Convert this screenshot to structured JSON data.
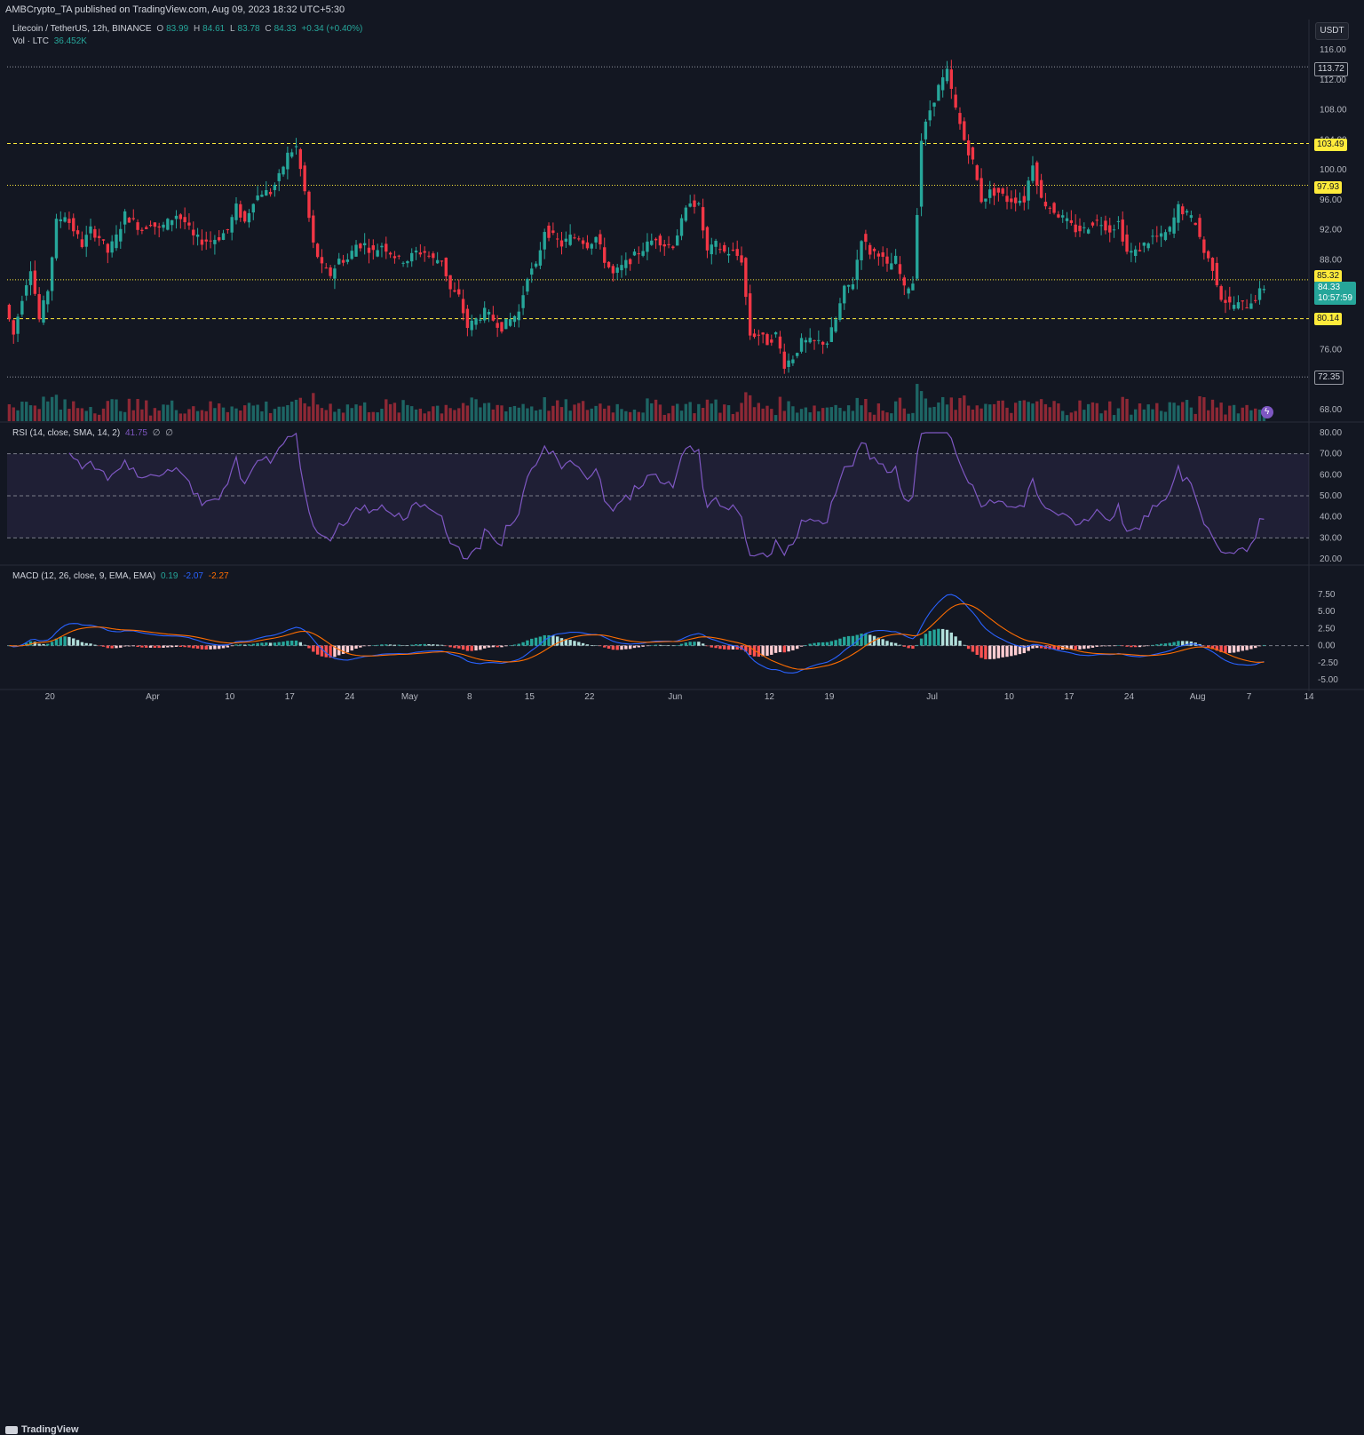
{
  "header": {
    "published": "AMBCrypto_TA published on TradingView.com, Aug 09, 2023 18:32 UTC+5:30"
  },
  "legend": {
    "symbol": "Litecoin / TetherUS, 12h, BINANCE",
    "o_label": "O",
    "o": "83.99",
    "h_label": "H",
    "h": "84.61",
    "l_label": "L",
    "l": "83.78",
    "c_label": "C",
    "c": "84.33",
    "change": "+0.34 (+0.40%)",
    "vol_label": "Vol · LTC",
    "vol_value": "36.452K",
    "rsi_label": "RSI (14, close, SMA, 14, 2)",
    "rsi_value": "41.75",
    "rsi_na1": "∅",
    "rsi_na2": "∅",
    "macd_label": "MACD (12, 26, close, 9, EMA, EMA)",
    "macd_hist": "0.19",
    "macd_line": "-2.07",
    "macd_signal": "-2.27"
  },
  "currency_button": "USDT",
  "footer": {
    "logo": "TradingView"
  },
  "colors": {
    "up": "#26a69a",
    "down": "#f23645",
    "rsi": "#7e57c2",
    "macd": "#2962ff",
    "signal": "#ff6d00",
    "level_yellow": "#ffeb3b"
  },
  "price_tags": {
    "level_high": "113.72",
    "level_r1": "103.49",
    "level_r2": "97.93",
    "level_r3": "85.32",
    "current": "84.33",
    "countdown": "10:57:59",
    "level_s1": "80.14",
    "level_low": "72.35"
  },
  "chart_data": [
    {
      "type": "candlestick",
      "title": "Litecoin / TetherUS, 12h, BINANCE",
      "interval": "12h",
      "x_range": [
        "2023-03-15",
        "2023-08-14"
      ],
      "x_ticks": [
        {
          "date": "2023-03-20",
          "label": "20"
        },
        {
          "date": "2023-04-01",
          "label": "Apr"
        },
        {
          "date": "2023-04-10",
          "label": "10"
        },
        {
          "date": "2023-04-17",
          "label": "17"
        },
        {
          "date": "2023-04-24",
          "label": "24"
        },
        {
          "date": "2023-05-01",
          "label": "May"
        },
        {
          "date": "2023-05-08",
          "label": "8"
        },
        {
          "date": "2023-05-15",
          "label": "15"
        },
        {
          "date": "2023-05-22",
          "label": "22"
        },
        {
          "date": "2023-06-01",
          "label": "Jun"
        },
        {
          "date": "2023-06-12",
          "label": "12"
        },
        {
          "date": "2023-06-19",
          "label": "19"
        },
        {
          "date": "2023-07-01",
          "label": "Jul"
        },
        {
          "date": "2023-07-10",
          "label": "10"
        },
        {
          "date": "2023-07-17",
          "label": "17"
        },
        {
          "date": "2023-07-24",
          "label": "24"
        },
        {
          "date": "2023-08-01",
          "label": "Aug"
        },
        {
          "date": "2023-08-07",
          "label": "7"
        },
        {
          "date": "2023-08-14",
          "label": "14"
        }
      ],
      "y_ticks": [
        "116.00",
        "112.00",
        "108.00",
        "104.00",
        "100.00",
        "96.00",
        "92.00",
        "88.00",
        "84.00",
        "80.00",
        "76.00",
        "72.00",
        "68.00"
      ],
      "y_range": [
        66,
        117
      ],
      "price_path": [
        [
          "2023-03-15",
          82
        ],
        [
          "2023-03-16",
          78
        ],
        [
          "2023-03-17",
          83
        ],
        [
          "2023-03-18",
          87
        ],
        [
          "2023-03-19",
          80
        ],
        [
          "2023-03-20",
          84
        ],
        [
          "2023-03-21",
          93
        ],
        [
          "2023-03-22",
          94
        ],
        [
          "2023-03-23",
          92
        ],
        [
          "2023-03-24",
          90
        ],
        [
          "2023-03-25",
          92
        ],
        [
          "2023-03-26",
          91
        ],
        [
          "2023-03-27",
          89
        ],
        [
          "2023-03-28",
          91
        ],
        [
          "2023-03-29",
          94
        ],
        [
          "2023-03-30",
          93
        ],
        [
          "2023-03-31",
          92
        ],
        [
          "2023-04-01",
          93
        ],
        [
          "2023-04-02",
          92
        ],
        [
          "2023-04-03",
          93
        ],
        [
          "2023-04-04",
          94
        ],
        [
          "2023-04-05",
          93
        ],
        [
          "2023-04-06",
          91
        ],
        [
          "2023-04-07",
          90.5
        ],
        [
          "2023-04-08",
          90.6
        ],
        [
          "2023-04-09",
          91
        ],
        [
          "2023-04-10",
          92
        ],
        [
          "2023-04-11",
          95
        ],
        [
          "2023-04-12",
          93
        ],
        [
          "2023-04-13",
          96
        ],
        [
          "2023-04-14",
          97
        ],
        [
          "2023-04-15",
          97
        ],
        [
          "2023-04-16",
          99
        ],
        [
          "2023-04-17",
          102
        ],
        [
          "2023-04-18",
          103
        ],
        [
          "2023-04-19",
          97
        ],
        [
          "2023-04-20",
          90
        ],
        [
          "2023-04-21",
          87
        ],
        [
          "2023-04-22",
          86
        ],
        [
          "2023-04-23",
          88
        ],
        [
          "2023-04-24",
          88
        ],
        [
          "2023-04-25",
          90
        ],
        [
          "2023-04-26",
          90
        ],
        [
          "2023-04-27",
          89
        ],
        [
          "2023-04-28",
          90
        ],
        [
          "2023-04-29",
          89
        ],
        [
          "2023-04-30",
          88
        ],
        [
          "2023-05-01",
          88
        ],
        [
          "2023-05-02",
          89
        ],
        [
          "2023-05-03",
          89
        ],
        [
          "2023-05-04",
          88
        ],
        [
          "2023-05-05",
          88
        ],
        [
          "2023-05-06",
          84
        ],
        [
          "2023-05-07",
          83
        ],
        [
          "2023-05-08",
          79
        ],
        [
          "2023-05-09",
          80
        ],
        [
          "2023-05-10",
          81
        ],
        [
          "2023-05-11",
          80
        ],
        [
          "2023-05-12",
          79
        ],
        [
          "2023-05-13",
          80
        ],
        [
          "2023-05-14",
          81
        ],
        [
          "2023-05-15",
          86
        ],
        [
          "2023-05-16",
          87
        ],
        [
          "2023-05-17",
          92
        ],
        [
          "2023-05-18",
          91
        ],
        [
          "2023-05-19",
          90
        ],
        [
          "2023-05-20",
          91
        ],
        [
          "2023-05-21",
          91
        ],
        [
          "2023-05-22",
          90
        ],
        [
          "2023-05-23",
          91
        ],
        [
          "2023-05-24",
          88
        ],
        [
          "2023-05-25",
          86
        ],
        [
          "2023-05-26",
          87
        ],
        [
          "2023-05-27",
          88
        ],
        [
          "2023-05-28",
          89
        ],
        [
          "2023-05-29",
          90
        ],
        [
          "2023-05-30",
          91
        ],
        [
          "2023-05-31",
          90
        ],
        [
          "2023-06-01",
          90
        ],
        [
          "2023-06-02",
          93
        ],
        [
          "2023-06-03",
          96
        ],
        [
          "2023-06-04",
          95
        ],
        [
          "2023-06-05",
          89
        ],
        [
          "2023-06-06",
          90
        ],
        [
          "2023-06-07",
          89
        ],
        [
          "2023-06-08",
          89
        ],
        [
          "2023-06-09",
          88
        ],
        [
          "2023-06-10",
          78
        ],
        [
          "2023-06-11",
          78
        ],
        [
          "2023-06-12",
          77
        ],
        [
          "2023-06-13",
          78
        ],
        [
          "2023-06-14",
          74
        ],
        [
          "2023-06-15",
          75
        ],
        [
          "2023-06-16",
          77
        ],
        [
          "2023-06-17",
          77
        ],
        [
          "2023-06-18",
          77
        ],
        [
          "2023-06-19",
          77
        ],
        [
          "2023-06-20",
          80
        ],
        [
          "2023-06-21",
          84
        ],
        [
          "2023-06-22",
          85
        ],
        [
          "2023-06-23",
          91
        ],
        [
          "2023-06-24",
          89
        ],
        [
          "2023-06-25",
          89
        ],
        [
          "2023-06-26",
          87
        ],
        [
          "2023-06-27",
          88
        ],
        [
          "2023-06-28",
          84
        ],
        [
          "2023-06-29",
          85
        ],
        [
          "2023-06-30",
          104
        ],
        [
          "2023-07-01",
          108
        ],
        [
          "2023-07-02",
          111
        ],
        [
          "2023-07-03",
          113
        ],
        [
          "2023-07-04",
          108
        ],
        [
          "2023-07-05",
          104
        ],
        [
          "2023-07-06",
          101
        ],
        [
          "2023-07-07",
          96
        ],
        [
          "2023-07-08",
          97
        ],
        [
          "2023-07-09",
          97
        ],
        [
          "2023-07-10",
          96
        ],
        [
          "2023-07-11",
          96
        ],
        [
          "2023-07-12",
          96
        ],
        [
          "2023-07-13",
          101
        ],
        [
          "2023-07-14",
          96
        ],
        [
          "2023-07-15",
          95
        ],
        [
          "2023-07-16",
          94
        ],
        [
          "2023-07-17",
          93
        ],
        [
          "2023-07-18",
          92
        ],
        [
          "2023-07-19",
          92
        ],
        [
          "2023-07-20",
          93
        ],
        [
          "2023-07-21",
          93
        ],
        [
          "2023-07-22",
          92
        ],
        [
          "2023-07-23",
          93
        ],
        [
          "2023-07-24",
          89
        ],
        [
          "2023-07-25",
          89
        ],
        [
          "2023-07-26",
          90
        ],
        [
          "2023-07-27",
          91
        ],
        [
          "2023-07-28",
          91
        ],
        [
          "2023-07-29",
          92
        ],
        [
          "2023-07-30",
          95
        ],
        [
          "2023-07-31",
          94
        ],
        [
          "2023-08-01",
          93
        ],
        [
          "2023-08-02",
          89
        ],
        [
          "2023-08-03",
          87
        ],
        [
          "2023-08-04",
          83
        ],
        [
          "2023-08-05",
          82
        ],
        [
          "2023-08-06",
          82
        ],
        [
          "2023-08-07",
          82
        ],
        [
          "2023-08-08",
          83
        ],
        [
          "2023-08-09",
          84.33
        ]
      ],
      "horizontal_levels": [
        {
          "price": 113.72,
          "style": "dotted",
          "color": "#9598a1"
        },
        {
          "price": 103.49,
          "style": "dashed",
          "color": "#ffeb3b"
        },
        {
          "price": 97.93,
          "style": "dotted",
          "color": "#ffeb3b"
        },
        {
          "price": 85.32,
          "style": "dotted",
          "color": "#ffeb3b"
        },
        {
          "price": 80.14,
          "style": "dashed",
          "color": "#ffeb3b"
        },
        {
          "price": 72.35,
          "style": "dotted",
          "color": "#9598a1"
        }
      ],
      "last": {
        "open": 83.99,
        "high": 84.61,
        "low": 83.78,
        "close": 84.33
      }
    },
    {
      "type": "line",
      "title": "RSI (14, close, SMA, 14, 2)",
      "y_ticks": [
        "80.00",
        "70.00",
        "60.00",
        "50.00",
        "40.00",
        "30.00",
        "20.00"
      ],
      "y_range": [
        18,
        82
      ],
      "bands": [
        30,
        70
      ],
      "mid": 50,
      "last_value": 41.75
    },
    {
      "type": "bar+line",
      "title": "MACD (12, 26, close, 9, EMA, EMA)",
      "y_ticks": [
        "7.50",
        "5.00",
        "2.50",
        "0.00",
        "-2.50",
        "-5.00"
      ],
      "y_range": [
        -5.5,
        8
      ],
      "series": [
        {
          "name": "MACD",
          "color": "#2962ff"
        },
        {
          "name": "Signal",
          "color": "#ff6d00"
        },
        {
          "name": "Histogram"
        }
      ],
      "last": {
        "histogram": 0.19,
        "macd": -2.07,
        "signal": -2.27
      }
    }
  ]
}
